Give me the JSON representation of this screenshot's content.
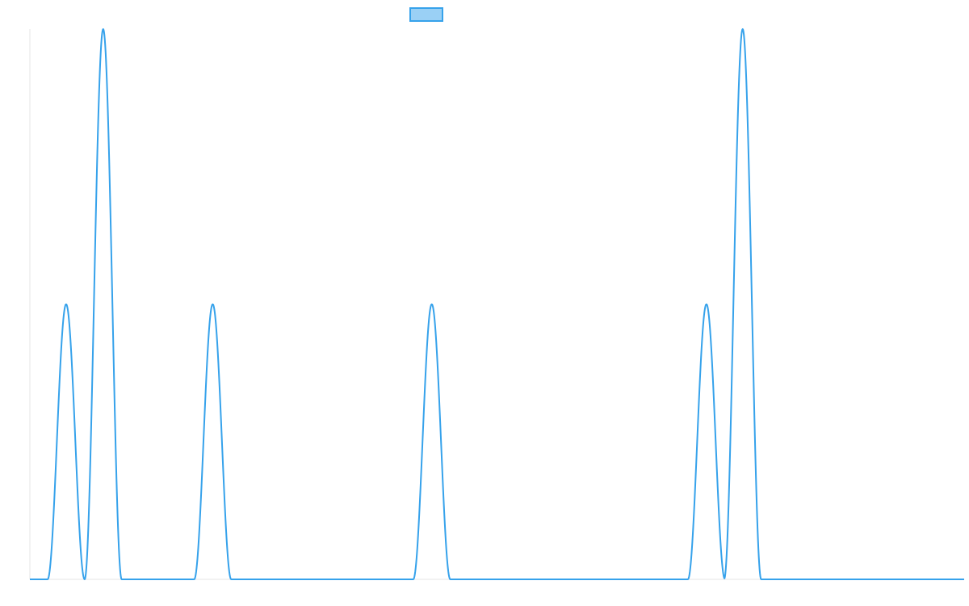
{
  "chart_data": {
    "type": "line",
    "title": "",
    "xlabel": "",
    "ylabel": "",
    "legend": {
      "placement": "top-center",
      "entries": [
        {
          "label": "",
          "color": "#36a2eb",
          "fill": "#9ad0f5"
        }
      ]
    },
    "grid": false,
    "xlim": [
      0,
      1160
    ],
    "ylim": [
      0,
      2
    ],
    "peak_halfwidth": 23,
    "series": [
      {
        "color": "#36a2eb",
        "peaks": [
          {
            "x": 45,
            "height": 1
          },
          {
            "x": 91,
            "height": 2
          },
          {
            "x": 227,
            "height": 1
          },
          {
            "x": 499,
            "height": 1
          },
          {
            "x": 840,
            "height": 1
          },
          {
            "x": 885,
            "height": 2
          }
        ]
      }
    ]
  }
}
